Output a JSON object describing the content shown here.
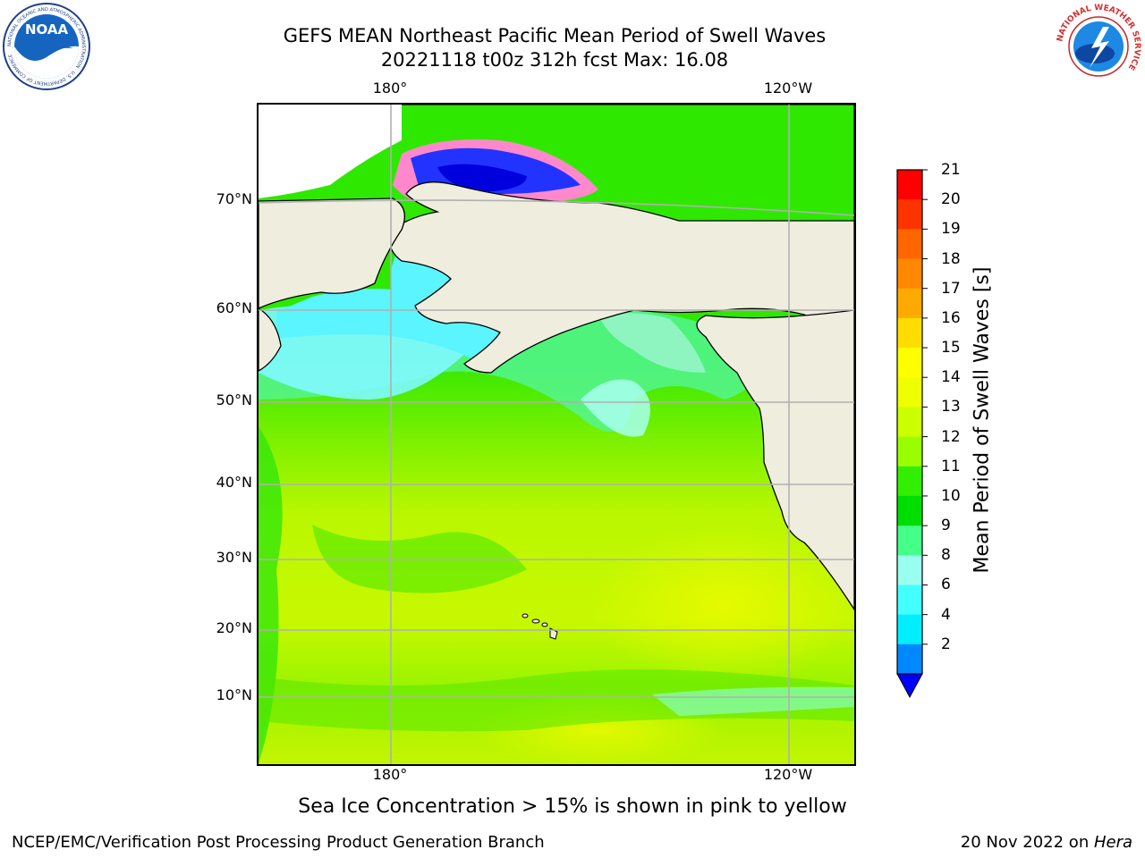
{
  "header": {
    "title": "GEFS MEAN Northeast Pacific Mean Period of Swell Waves",
    "subtitle": "20221118 t00z 312h fcst   Max: 16.08"
  },
  "logos": {
    "noaa": "NOAA",
    "noaa_ring": "NATIONAL OCEANIC AND ATMOSPHERIC ADMINISTRATION · U.S. DEPARTMENT OF COMMERCE",
    "nws_ring": "NATIONAL WEATHER SERVICE"
  },
  "map": {
    "lon_labels": [
      "180°",
      "120°W"
    ],
    "lat_labels": [
      "70°N",
      "60°N",
      "50°N",
      "40°N",
      "30°N",
      "20°N",
      "10°N"
    ],
    "land_color": "#efedde",
    "grid_color": "#b0b0b0"
  },
  "colorbar": {
    "label": "Mean Period of Swell Waves [s]",
    "ticks": [
      "21",
      "20",
      "19",
      "18",
      "17",
      "16",
      "15",
      "14",
      "13",
      "12",
      "11",
      "10",
      "9",
      "8",
      "6",
      "4",
      "2"
    ],
    "colors_top_to_bottom": [
      "#ff0000",
      "#ff3300",
      "#ff6600",
      "#ff8800",
      "#ffaa00",
      "#ffdd00",
      "#ffff00",
      "#eeff00",
      "#ccff00",
      "#99ff00",
      "#33ee00",
      "#00dd00",
      "#44ff88",
      "#99ffee",
      "#44ffff",
      "#00eeff",
      "#0088ff"
    ],
    "extend_color": "#0000ff"
  },
  "footnote": "Sea Ice Concentration > 15% is shown in pink to yellow",
  "footer": {
    "left": "NCEP/EMC/Verification Post Processing Product Generation Branch",
    "right_date": "20 Nov 2022 on ",
    "right_host": "Hera"
  }
}
